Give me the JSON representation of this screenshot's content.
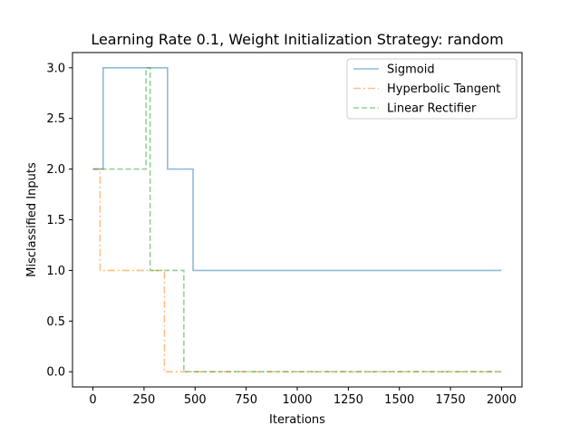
{
  "chart_data": {
    "type": "line",
    "title": "Learning Rate 0.1, Weight Initialization Strategy: random",
    "xlabel": "Iterations",
    "ylabel": "Misclassified Inputs",
    "xlim": [
      -100,
      2100
    ],
    "ylim": [
      -0.15,
      3.15
    ],
    "x_ticks": [
      0,
      250,
      500,
      750,
      1000,
      1250,
      1500,
      1750,
      2000
    ],
    "y_ticks": [
      0.0,
      0.5,
      1.0,
      1.5,
      2.0,
      2.5,
      3.0
    ],
    "x_tick_labels": [
      "0",
      "250",
      "500",
      "750",
      "1000",
      "1250",
      "1500",
      "1750",
      "2000"
    ],
    "y_tick_labels": [
      "0.0",
      "0.5",
      "1.0",
      "1.5",
      "2.0",
      "2.5",
      "3.0"
    ],
    "grid": false,
    "legend_position": "upper-right",
    "step_style": "post",
    "series": [
      {
        "name": "Sigmoid",
        "color": "#1f77b4",
        "linestyle": "solid",
        "points": [
          [
            0,
            2
          ],
          [
            50,
            2
          ],
          [
            50,
            3
          ],
          [
            365,
            3
          ],
          [
            365,
            2
          ],
          [
            490,
            2
          ],
          [
            490,
            1
          ],
          [
            2000,
            1
          ]
        ]
      },
      {
        "name": "Hyperbolic Tangent",
        "color": "#ff7f0e",
        "linestyle": "dashdot",
        "points": [
          [
            0,
            2
          ],
          [
            35,
            2
          ],
          [
            35,
            1
          ],
          [
            350,
            1
          ],
          [
            350,
            0
          ],
          [
            2000,
            0
          ]
        ]
      },
      {
        "name": "Linear Rectifier",
        "color": "#2ca02c",
        "linestyle": "dashed",
        "points": [
          [
            0,
            2
          ],
          [
            260,
            2
          ],
          [
            260,
            3
          ],
          [
            280,
            3
          ],
          [
            280,
            1
          ],
          [
            445,
            1
          ],
          [
            445,
            0
          ],
          [
            2000,
            0
          ]
        ]
      }
    ]
  }
}
